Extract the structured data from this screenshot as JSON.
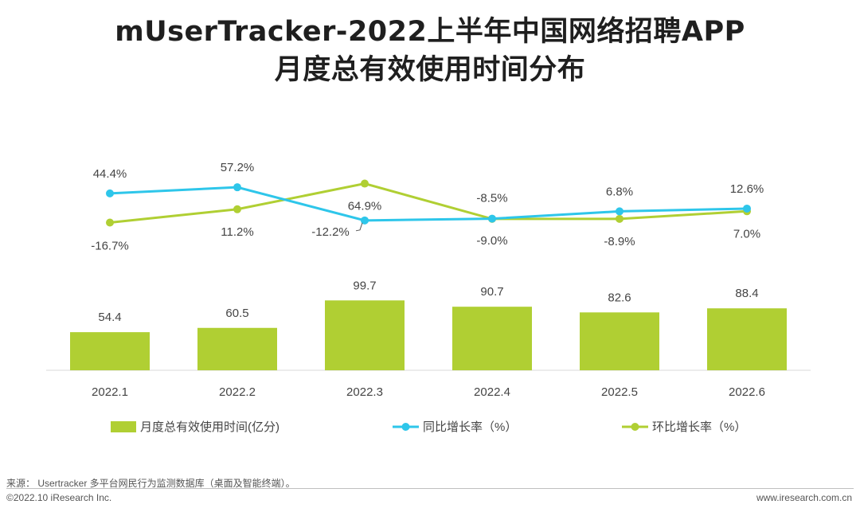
{
  "title": {
    "line1": "mUserTracker-2022上半年中国网络招聘APP",
    "line2": "月度总有效使用时间分布"
  },
  "chart_data": {
    "type": "bar+line",
    "categories": [
      "2022.1",
      "2022.2",
      "2022.3",
      "2022.4",
      "2022.5",
      "2022.6"
    ],
    "bars": {
      "name": "月度总有效使用时间(亿分)",
      "values": [
        54.4,
        60.5,
        99.7,
        90.7,
        82.6,
        88.4
      ],
      "labels": [
        "54.4",
        "60.5",
        "99.7",
        "90.7",
        "82.6",
        "88.4"
      ],
      "color": "#b0cf33",
      "ylim": [
        0,
        150
      ]
    },
    "lines": [
      {
        "name": "同比增长率（%）",
        "values": [
          44.4,
          57.2,
          -12.2,
          -8.5,
          6.8,
          12.6
        ],
        "labels": [
          "44.4%",
          "57.2%",
          "-12.2%",
          "-8.5%",
          "6.8%",
          "12.6%"
        ],
        "color": "#2ec6ea"
      },
      {
        "name": "环比增长率（%）",
        "values": [
          -16.7,
          11.2,
          64.9,
          -9.0,
          -8.9,
          7.0
        ],
        "labels": [
          "-16.7%",
          "11.2%",
          "64.9%",
          "-9.0%",
          "-8.9%",
          "7.0%"
        ],
        "color": "#b0cf33"
      }
    ],
    "legend_position": "bottom"
  },
  "footer": {
    "source": "来源： Usertracker 多平台网民行为监测数据库（桌面及智能终端）。",
    "copyright": "©2022.10 iResearch Inc.",
    "website": "www.iresearch.com.cn"
  }
}
